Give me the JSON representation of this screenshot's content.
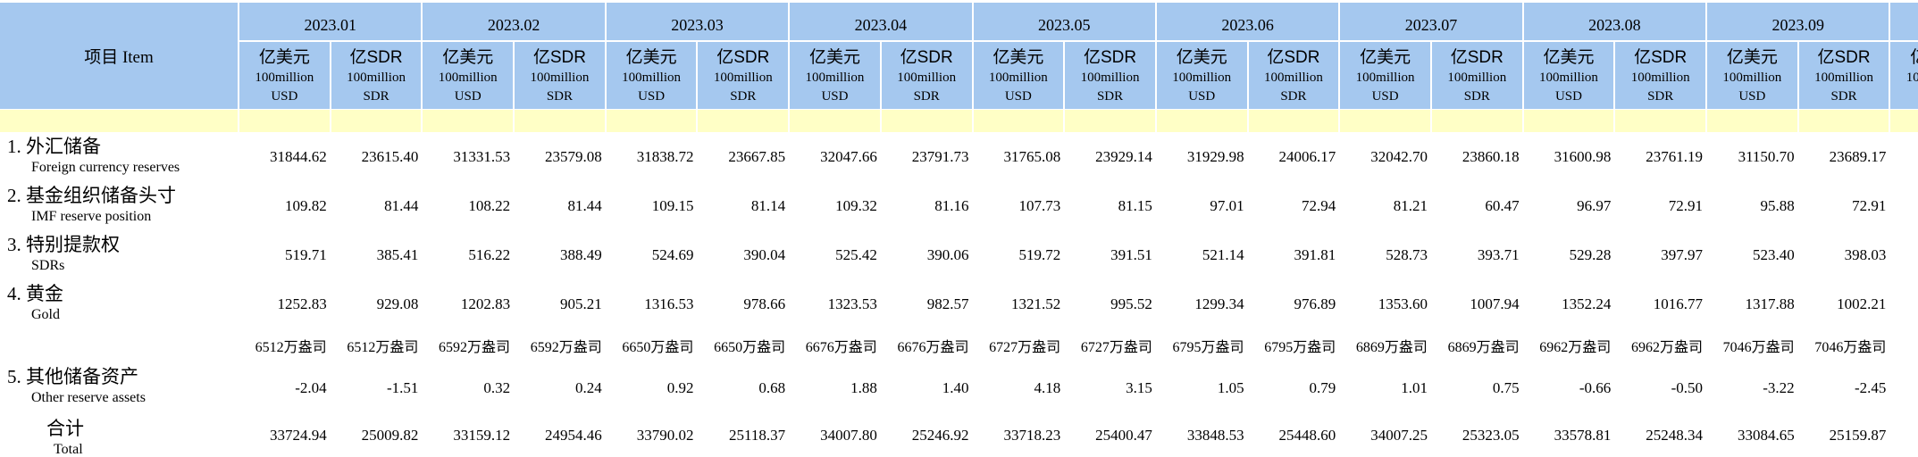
{
  "table": {
    "header": {
      "item_col": "项目  Item",
      "months": [
        "2023.01",
        "2023.02",
        "2023.03",
        "2023.04",
        "2023.05",
        "2023.06",
        "2023.07",
        "2023.08",
        "2023.09",
        ""
      ],
      "unit_usd": {
        "cn": "亿美元",
        "en1": "100million",
        "en2": "USD"
      },
      "unit_sdr": {
        "cn": "亿SDR",
        "en1": "100million",
        "en2": "SDR"
      }
    },
    "body_rows": [
      {
        "type": "item",
        "label_cn": "1. 外汇储备",
        "label_en": "Foreign currency reserves",
        "cells": [
          [
            "31844.62",
            "23615.40"
          ],
          [
            "31331.53",
            "23579.08"
          ],
          [
            "31838.72",
            "23667.85"
          ],
          [
            "32047.66",
            "23791.73"
          ],
          [
            "31765.08",
            "23929.14"
          ],
          [
            "31929.98",
            "24006.17"
          ],
          [
            "32042.70",
            "23860.18"
          ],
          [
            "31600.98",
            "23761.19"
          ],
          [
            "31150.70",
            "23689.17"
          ]
        ]
      },
      {
        "type": "item",
        "label_cn": "2. 基金组织储备头寸",
        "label_en": "IMF reserve position",
        "cells": [
          [
            "109.82",
            "81.44"
          ],
          [
            "108.22",
            "81.44"
          ],
          [
            "109.15",
            "81.14"
          ],
          [
            "109.32",
            "81.16"
          ],
          [
            "107.73",
            "81.15"
          ],
          [
            "97.01",
            "72.94"
          ],
          [
            "81.21",
            "60.47"
          ],
          [
            "96.97",
            "72.91"
          ],
          [
            "95.88",
            "72.91"
          ]
        ]
      },
      {
        "type": "item",
        "label_cn": "3. 特别提款权",
        "label_en": "SDRs",
        "cells": [
          [
            "519.71",
            "385.41"
          ],
          [
            "516.22",
            "388.49"
          ],
          [
            "524.69",
            "390.04"
          ],
          [
            "525.42",
            "390.06"
          ],
          [
            "519.72",
            "391.51"
          ],
          [
            "521.14",
            "391.81"
          ],
          [
            "528.73",
            "393.71"
          ],
          [
            "529.28",
            "397.97"
          ],
          [
            "523.40",
            "398.03"
          ]
        ]
      },
      {
        "type": "item",
        "label_cn": "4. 黄金",
        "label_en": "Gold",
        "cells": [
          [
            "1252.83",
            "929.08"
          ],
          [
            "1202.83",
            "905.21"
          ],
          [
            "1316.53",
            "978.66"
          ],
          [
            "1323.53",
            "982.57"
          ],
          [
            "1321.52",
            "995.52"
          ],
          [
            "1299.34",
            "976.89"
          ],
          [
            "1353.60",
            "1007.94"
          ],
          [
            "1352.24",
            "1016.77"
          ],
          [
            "1317.88",
            "1002.21"
          ]
        ]
      },
      {
        "type": "qty",
        "cells": [
          [
            "6512万盎司",
            "6512万盎司"
          ],
          [
            "6592万盎司",
            "6592万盎司"
          ],
          [
            "6650万盎司",
            "6650万盎司"
          ],
          [
            "6676万盎司",
            "6676万盎司"
          ],
          [
            "6727万盎司",
            "6727万盎司"
          ],
          [
            "6795万盎司",
            "6795万盎司"
          ],
          [
            "6869万盎司",
            "6869万盎司"
          ],
          [
            "6962万盎司",
            "6962万盎司"
          ],
          [
            "7046万盎司",
            "7046万盎司"
          ]
        ]
      },
      {
        "type": "item",
        "label_cn": "5. 其他储备资产",
        "label_en": "Other reserve assets",
        "cells": [
          [
            "-2.04",
            "-1.51"
          ],
          [
            "0.32",
            "0.24"
          ],
          [
            "0.92",
            "0.68"
          ],
          [
            "1.88",
            "1.40"
          ],
          [
            "4.18",
            "3.15"
          ],
          [
            "1.05",
            "0.79"
          ],
          [
            "1.01",
            "0.75"
          ],
          [
            "-0.66",
            "-0.50"
          ],
          [
            "-3.22",
            "-2.45"
          ]
        ]
      },
      {
        "type": "total",
        "label_cn": "合计",
        "label_en": "Total",
        "cells": [
          [
            "33724.94",
            "25009.82"
          ],
          [
            "33159.12",
            "24954.46"
          ],
          [
            "33790.02",
            "25118.37"
          ],
          [
            "34007.80",
            "25246.92"
          ],
          [
            "33718.23",
            "25400.47"
          ],
          [
            "33848.53",
            "25448.60"
          ],
          [
            "34007.25",
            "25323.05"
          ],
          [
            "33578.81",
            "25248.34"
          ],
          [
            "33084.65",
            "25159.87"
          ]
        ]
      }
    ],
    "colors": {
      "header_blue": "#a5c8ef",
      "separator_yellow": "#ffffc6",
      "divider_white": "#ffffff"
    }
  }
}
